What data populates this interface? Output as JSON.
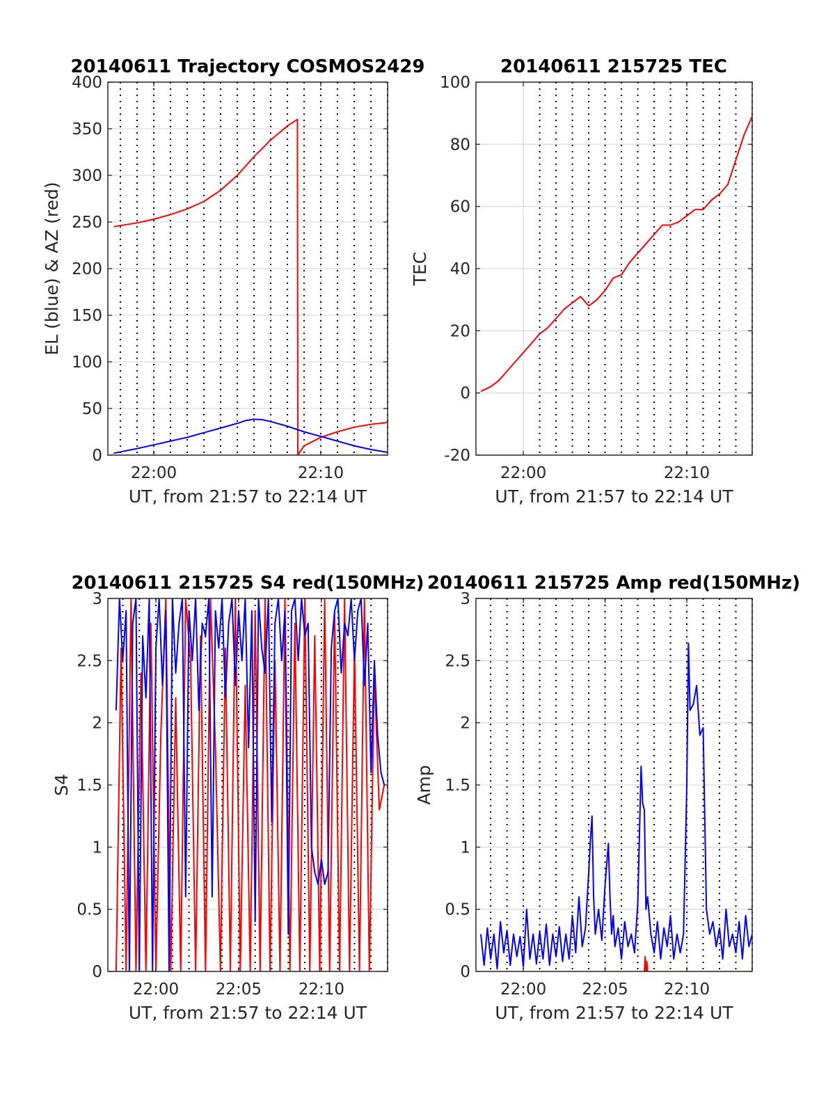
{
  "chart_data": [
    {
      "id": "traj",
      "type": "line",
      "title": "20140611 Trajectory COSMOS2429",
      "xlabel": "UT, from 21:57 to 22:14 UT",
      "ylabel": "EL (blue) & AZ (red)",
      "xlim": [
        -2.75,
        14.0
      ],
      "ylim": [
        0,
        400
      ],
      "yticks": [
        0,
        50,
        100,
        150,
        200,
        250,
        300,
        350,
        400
      ],
      "ytick_labels": [
        "0",
        "50",
        "100",
        "150",
        "200",
        "250",
        "300",
        "350",
        "400"
      ],
      "xticks": [
        0,
        10
      ],
      "xtick_labels": [
        "22:00",
        "22:10"
      ],
      "grid": true,
      "series": [
        {
          "color": "#ff0000",
          "x": [
            -2.4,
            -1.0,
            0.0,
            1.0,
            2.0,
            3.0,
            4.0,
            5.0,
            6.0,
            7.0,
            8.0,
            8.6,
            8.62,
            9.0,
            10.0,
            11.0,
            12.0,
            13.0,
            14.0
          ],
          "y": [
            245,
            249,
            253,
            258,
            264,
            272,
            284,
            300,
            320,
            338,
            353,
            360,
            0,
            10,
            19,
            25,
            30,
            33,
            35
          ]
        },
        {
          "color": "#0000ff",
          "x": [
            -2.4,
            -1.0,
            0.0,
            1.0,
            2.0,
            3.0,
            4.0,
            5.0,
            5.5,
            6.0,
            6.5,
            7.0,
            8.0,
            9.0,
            10.0,
            11.0,
            12.0,
            13.0,
            14.0
          ],
          "y": [
            2,
            7,
            11,
            15,
            19,
            24,
            29,
            34,
            37,
            38.5,
            38,
            36,
            31,
            25,
            20,
            15,
            10,
            6,
            3
          ]
        }
      ]
    },
    {
      "id": "tec",
      "type": "line",
      "title": "20140611 215725 TEC",
      "xlabel": "UT, from 21:57 to 22:14 UT",
      "ylabel": "TEC",
      "xlim": [
        -2.9,
        14.0
      ],
      "ylim": [
        -20,
        100
      ],
      "yticks": [
        -20,
        0,
        20,
        40,
        60,
        80,
        100
      ],
      "ytick_labels": [
        "-20",
        "0",
        "20",
        "40",
        "60",
        "80",
        "100"
      ],
      "xticks": [
        0,
        10
      ],
      "xtick_labels": [
        "22:00",
        "22:10"
      ],
      "grid": true,
      "series": [
        {
          "color": "#ff0000",
          "x": [
            -2.6,
            -2.0,
            -1.5,
            -1.0,
            -0.5,
            0.0,
            0.5,
            1.0,
            1.5,
            2.0,
            2.5,
            3.0,
            3.5,
            4.0,
            4.5,
            5.0,
            5.5,
            6.0,
            6.5,
            7.0,
            7.5,
            8.0,
            8.5,
            9.0,
            9.5,
            10.0,
            10.5,
            11.0,
            11.5,
            12.0,
            12.5,
            13.0,
            13.5,
            14.0
          ],
          "y": [
            0.5,
            2,
            4,
            7,
            10,
            13,
            16,
            19,
            21,
            24,
            27,
            29,
            31,
            28,
            30,
            33,
            37,
            38,
            42,
            45,
            48,
            51,
            54,
            54,
            55,
            57,
            59,
            59,
            62,
            64,
            67,
            75,
            83,
            89
          ]
        }
      ]
    },
    {
      "id": "s4",
      "type": "line",
      "title": "20140611 215725 S4 red(150MHz)",
      "xlabel": "UT, from 21:57 to 22:14 UT",
      "ylabel": "S4",
      "xlim": [
        -2.9,
        14.0
      ],
      "ylim": [
        0,
        3
      ],
      "yticks": [
        0,
        0.5,
        1,
        1.5,
        2,
        2.5,
        3
      ],
      "ytick_labels": [
        "0",
        "0.5",
        "1",
        "1.5",
        "2",
        "2.5",
        "3"
      ],
      "xticks": [
        0,
        5,
        10
      ],
      "xtick_labels": [
        "22:00",
        "22:05",
        "22:10"
      ],
      "grid": true,
      "series": [
        {
          "color": "#ff0000",
          "x": [
            -2.4,
            -2.1,
            -1.8,
            -1.5,
            -1.2,
            -0.9,
            -0.6,
            -0.3,
            0.0,
            0.3,
            0.6,
            0.9,
            1.2,
            1.5,
            1.8,
            2.1,
            2.4,
            2.7,
            3.0,
            3.3,
            3.6,
            3.9,
            4.2,
            4.5,
            4.8,
            5.1,
            5.4,
            5.7,
            6.0,
            6.3,
            6.6,
            6.9,
            7.2,
            7.5,
            7.8,
            8.1,
            8.4,
            8.7,
            9.0,
            9.3,
            9.6,
            9.9,
            10.2,
            10.5,
            10.8,
            11.1,
            11.4,
            11.7,
            12.0,
            12.3,
            12.6,
            12.9,
            13.2,
            13.5,
            13.8
          ],
          "y": [
            0,
            2.6,
            0,
            3,
            0,
            2.4,
            0,
            2.8,
            0,
            1.9,
            3,
            0,
            2.2,
            0,
            3,
            2.5,
            0,
            2.7,
            0,
            3,
            1.8,
            0,
            2.6,
            0,
            3,
            0,
            2.3,
            0,
            2.9,
            0,
            3,
            0,
            2.5,
            0,
            3,
            0,
            2.8,
            0,
            3,
            0,
            2.7,
            0,
            3,
            0,
            2.9,
            0,
            3,
            0,
            2.6,
            0,
            3,
            0,
            2.4,
            1.3,
            1.5
          ]
        },
        {
          "color": "#0000ff",
          "x": [
            -2.4,
            -2.2,
            -2.0,
            -1.8,
            -1.6,
            -1.4,
            -1.2,
            -1.0,
            -0.8,
            -0.6,
            -0.4,
            -0.2,
            0.0,
            0.2,
            0.4,
            0.6,
            0.8,
            1.0,
            1.2,
            1.4,
            1.6,
            1.8,
            2.0,
            2.2,
            2.4,
            2.6,
            2.8,
            3.0,
            3.2,
            3.4,
            3.6,
            3.8,
            4.0,
            4.2,
            4.4,
            4.6,
            4.8,
            5.0,
            5.2,
            5.4,
            5.6,
            5.8,
            6.0,
            6.2,
            6.4,
            6.6,
            6.8,
            7.0,
            7.2,
            7.4,
            7.6,
            7.8,
            8.0,
            8.2,
            8.4,
            8.6,
            8.8,
            9.0,
            9.2,
            9.4,
            9.6,
            9.8,
            10.0,
            10.2,
            10.4,
            10.6,
            10.8,
            11.0,
            11.2,
            11.4,
            11.6,
            11.8,
            12.0,
            12.2,
            12.4,
            12.6,
            12.8,
            13.0,
            13.2,
            13.4,
            13.6,
            13.8
          ],
          "y": [
            2.1,
            3,
            2.5,
            2.9,
            0,
            2.8,
            3,
            0,
            2.7,
            2.2,
            3,
            0,
            2.6,
            3,
            2.3,
            2.9,
            0,
            3,
            2.4,
            2.8,
            3,
            0.6,
            2.9,
            2.5,
            3,
            2.1,
            2.8,
            2.7,
            3,
            0.6,
            2.9,
            2.6,
            3,
            2.2,
            2.8,
            3,
            2.3,
            2.9,
            2.5,
            3,
            1.8,
            2.9,
            0.4,
            3,
            2.6,
            2.4,
            3,
            1.2,
            2.8,
            3,
            2.5,
            2.9,
            0.3,
            2.9,
            3,
            2.5,
            3,
            2.7,
            2.8,
            1.0,
            0.8,
            0.7,
            0.9,
            0.7,
            0.8,
            2.6,
            2.9,
            3,
            2.4,
            2.8,
            2.7,
            3,
            2.5,
            2.9,
            3,
            2.3,
            2.8,
            1.6,
            2.5,
            1.9,
            1.6,
            1.5
          ]
        }
      ]
    },
    {
      "id": "amp",
      "type": "line",
      "title": "20140611 215725 Amp red(150MHz)",
      "xlabel": "UT, from 21:57 to 22:14 UT",
      "ylabel": "Amp",
      "xlim": [
        -2.9,
        14.0
      ],
      "ylim": [
        0,
        3
      ],
      "yticks": [
        0,
        0.5,
        1,
        1.5,
        2,
        2.5,
        3
      ],
      "ytick_labels": [
        "0",
        "0.5",
        "1",
        "1.5",
        "2",
        "2.5",
        "3"
      ],
      "xticks": [
        0,
        5,
        10
      ],
      "xtick_labels": [
        "22:00",
        "22:05",
        "22:10"
      ],
      "grid": true,
      "series": [
        {
          "color": "#ff0000",
          "x": [
            7.4,
            7.45,
            7.5,
            7.55,
            7.6
          ],
          "y": [
            0,
            0.12,
            0,
            0.08,
            0
          ]
        },
        {
          "color": "#0000ff",
          "x": [
            -2.6,
            -2.4,
            -2.2,
            -2.0,
            -1.8,
            -1.6,
            -1.4,
            -1.2,
            -1.0,
            -0.8,
            -0.6,
            -0.4,
            -0.2,
            0.0,
            0.2,
            0.4,
            0.6,
            0.8,
            1.0,
            1.2,
            1.4,
            1.6,
            1.8,
            2.0,
            2.2,
            2.4,
            2.6,
            2.8,
            3.0,
            3.2,
            3.4,
            3.6,
            3.8,
            4.0,
            4.1,
            4.2,
            4.3,
            4.4,
            4.6,
            4.8,
            5.0,
            5.2,
            5.3,
            5.4,
            5.5,
            5.6,
            5.8,
            6.0,
            6.2,
            6.4,
            6.6,
            6.8,
            7.0,
            7.2,
            7.3,
            7.4,
            7.5,
            7.6,
            7.8,
            8.0,
            8.2,
            8.4,
            8.6,
            8.8,
            9.0,
            9.2,
            9.4,
            9.6,
            9.8,
            10.0,
            10.1,
            10.2,
            10.4,
            10.6,
            10.8,
            11.0,
            11.2,
            11.4,
            11.6,
            11.8,
            12.0,
            12.2,
            12.4,
            12.6,
            12.8,
            13.0,
            13.2,
            13.4,
            13.6,
            13.8,
            14.0
          ],
          "y": [
            0.3,
            0.05,
            0.35,
            0.1,
            0.3,
            0.02,
            0.4,
            0.15,
            0.33,
            0.05,
            0.3,
            0.12,
            0.28,
            0.04,
            0.5,
            0.1,
            0.3,
            0.06,
            0.32,
            0.1,
            0.38,
            0.05,
            0.3,
            0.12,
            0.36,
            0.08,
            0.3,
            0.1,
            0.45,
            0.15,
            0.6,
            0.2,
            0.35,
            0.8,
            1.05,
            1.25,
            0.6,
            0.3,
            0.5,
            0.25,
            0.7,
            1.03,
            0.6,
            0.3,
            0.45,
            0.2,
            0.35,
            0.1,
            0.4,
            0.2,
            0.3,
            0.15,
            0.55,
            1.65,
            1.35,
            1.3,
            0.5,
            0.6,
            0.3,
            0.15,
            0.4,
            0.1,
            0.35,
            0.2,
            0.45,
            0.1,
            0.3,
            0.15,
            0.3,
            1.5,
            2.64,
            2.1,
            2.15,
            2.3,
            1.9,
            1.96,
            0.5,
            0.3,
            0.4,
            0.2,
            0.35,
            0.1,
            0.5,
            0.2,
            0.3,
            0.15,
            0.4,
            0.1,
            0.45,
            0.2,
            0.3
          ]
        }
      ]
    }
  ]
}
